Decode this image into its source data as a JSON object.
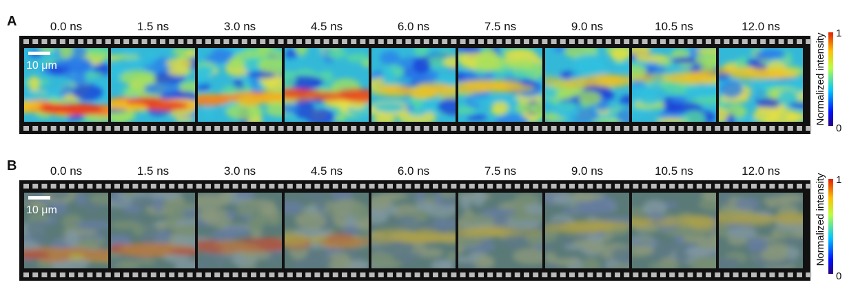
{
  "panels": [
    {
      "label": "A",
      "frames": [
        "0.0 ns",
        "1.5 ns",
        "3.0 ns",
        "4.5 ns",
        "6.0 ns",
        "7.5 ns",
        "9.0 ns",
        "10.5 ns",
        "12.0 ns"
      ],
      "scale_bar": "10 μm",
      "colorbar": {
        "label": "Normalized intensity",
        "max": "1",
        "min": "0"
      }
    },
    {
      "label": "B",
      "frames": [
        "0.0 ns",
        "1.5 ns",
        "3.0 ns",
        "4.5 ns",
        "6.0 ns",
        "7.5 ns",
        "9.0 ns",
        "10.5 ns",
        "12.0 ns"
      ],
      "scale_bar": "10 μm",
      "colorbar": {
        "label": "Normalized intensity",
        "max": "1",
        "min": "0"
      }
    }
  ]
}
